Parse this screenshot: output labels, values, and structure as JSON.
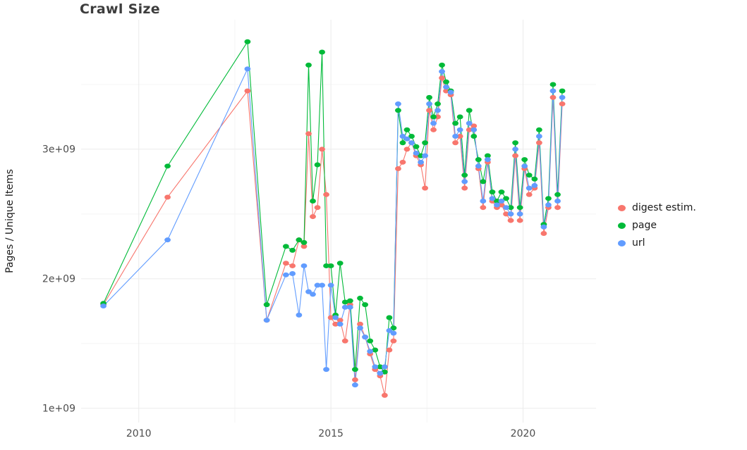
{
  "title": "Crawl Size",
  "chart_data": {
    "type": "line",
    "title": "Crawl Size",
    "xlabel": "",
    "ylabel": "Pages / Unique Items",
    "y_unit": "billions (1e9)",
    "xlim": [
      2008.5,
      2021.9
    ],
    "ylim": [
      0.89,
      4.0
    ],
    "grid": "on",
    "legend_position": "right",
    "x_tick_values": [
      2010,
      2015,
      2020
    ],
    "x_tick_labels": [
      "2010",
      "2015",
      "2020"
    ],
    "y_tick_values": [
      1,
      2,
      3
    ],
    "y_tick_labels": [
      "1e+09",
      "2e+09",
      "3e+09"
    ],
    "x_minor_gridlines": [
      2012.5,
      2017.5
    ],
    "y_minor_gridlines": [
      1.5,
      2.5,
      3.5
    ],
    "x": [
      2009.08,
      2010.75,
      2012.83,
      2013.33,
      2013.83,
      2014.0,
      2014.17,
      2014.3,
      2014.42,
      2014.53,
      2014.65,
      2014.77,
      2014.88,
      2015.0,
      2015.12,
      2015.24,
      2015.37,
      2015.5,
      2015.63,
      2015.76,
      2015.89,
      2016.02,
      2016.15,
      2016.28,
      2016.4,
      2016.52,
      2016.63,
      2016.75,
      2016.87,
      2016.98,
      2017.1,
      2017.22,
      2017.34,
      2017.45,
      2017.56,
      2017.67,
      2017.78,
      2017.89,
      2018.0,
      2018.12,
      2018.24,
      2018.36,
      2018.48,
      2018.6,
      2018.72,
      2018.84,
      2018.96,
      2019.08,
      2019.2,
      2019.32,
      2019.44,
      2019.56,
      2019.68,
      2019.8,
      2019.92,
      2020.04,
      2020.16,
      2020.3,
      2020.42,
      2020.54,
      2020.66,
      2020.78,
      2020.9,
      2021.02
    ],
    "series": [
      {
        "name": "digest estim.",
        "color": "#F8766D",
        "values": [
          1.8,
          2.63,
          3.45,
          1.68,
          2.12,
          2.1,
          2.3,
          2.25,
          3.12,
          2.48,
          2.55,
          3.0,
          2.65,
          1.7,
          1.65,
          1.68,
          1.52,
          1.8,
          1.22,
          1.65,
          1.55,
          1.42,
          1.3,
          1.25,
          1.1,
          1.45,
          1.52,
          2.85,
          2.9,
          3.0,
          3.05,
          2.95,
          2.88,
          2.7,
          3.3,
          3.15,
          3.25,
          3.55,
          3.45,
          3.42,
          3.05,
          3.1,
          2.7,
          3.15,
          3.18,
          2.85,
          2.55,
          2.9,
          2.6,
          2.55,
          2.57,
          2.5,
          2.45,
          2.95,
          2.45,
          2.85,
          2.65,
          2.7,
          3.05,
          2.35,
          2.55,
          3.4,
          2.55,
          3.35
        ]
      },
      {
        "name": "page",
        "color": "#00BA38",
        "values": [
          1.81,
          2.87,
          3.83,
          1.8,
          2.25,
          2.22,
          2.3,
          2.28,
          3.65,
          2.6,
          2.88,
          3.75,
          2.1,
          2.1,
          1.72,
          2.12,
          1.82,
          1.83,
          1.3,
          1.85,
          1.8,
          1.52,
          1.45,
          1.32,
          1.28,
          1.7,
          1.62,
          3.3,
          3.05,
          3.15,
          3.1,
          3.02,
          2.95,
          3.05,
          3.4,
          3.25,
          3.35,
          3.65,
          3.52,
          3.45,
          3.2,
          3.25,
          2.8,
          3.3,
          3.1,
          2.92,
          2.75,
          2.95,
          2.67,
          2.6,
          2.67,
          2.62,
          2.55,
          3.05,
          2.55,
          2.92,
          2.8,
          2.77,
          3.15,
          2.42,
          2.62,
          3.5,
          2.65,
          3.45
        ]
      },
      {
        "name": "url",
        "color": "#619CFF",
        "values": [
          1.79,
          2.3,
          3.62,
          1.68,
          2.03,
          2.04,
          1.72,
          2.1,
          1.9,
          1.88,
          1.95,
          1.95,
          1.3,
          1.95,
          1.7,
          1.65,
          1.78,
          1.78,
          1.18,
          1.62,
          1.55,
          1.44,
          1.32,
          1.27,
          1.32,
          1.6,
          1.58,
          3.35,
          3.1,
          3.08,
          3.05,
          2.97,
          2.9,
          2.95,
          3.35,
          3.2,
          3.3,
          3.6,
          3.48,
          3.44,
          3.1,
          3.15,
          2.75,
          3.2,
          3.15,
          2.87,
          2.6,
          2.92,
          2.62,
          2.57,
          2.6,
          2.55,
          2.5,
          3.0,
          2.5,
          2.87,
          2.7,
          2.72,
          3.1,
          2.4,
          2.57,
          3.45,
          2.6,
          3.4
        ]
      }
    ],
    "style": {
      "major_grid_color": "#EBEBEB",
      "minor_grid_color": "#F5F5F5",
      "tick_label_color": "#4d4d4d",
      "panel_background": "#ffffff"
    }
  }
}
